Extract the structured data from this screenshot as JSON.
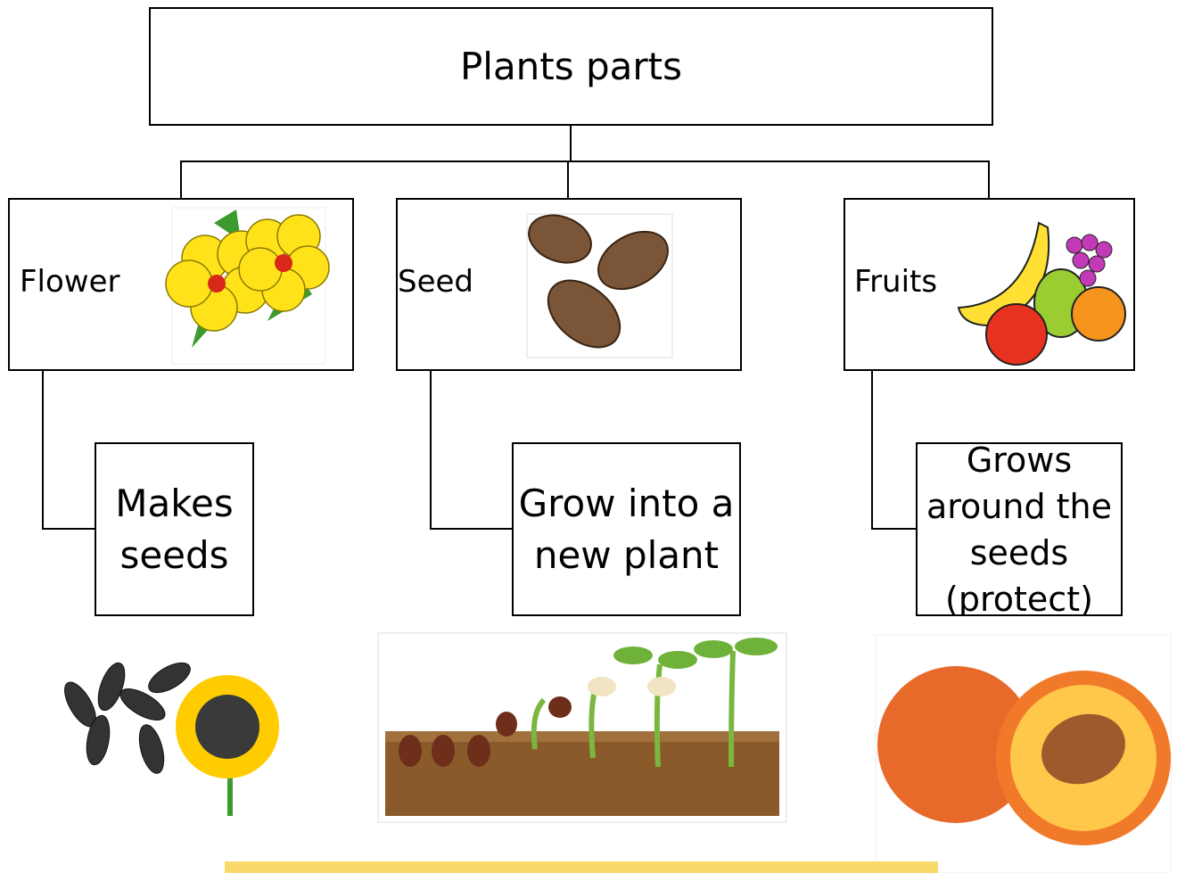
{
  "title": "Plants parts",
  "nodes": [
    {
      "label": "Flower",
      "description": "Makes seeds"
    },
    {
      "label": "Seed",
      "description": "Grow into a new plant"
    },
    {
      "label": "Fruits",
      "description": "Grows around the seeds (protect)"
    }
  ]
}
